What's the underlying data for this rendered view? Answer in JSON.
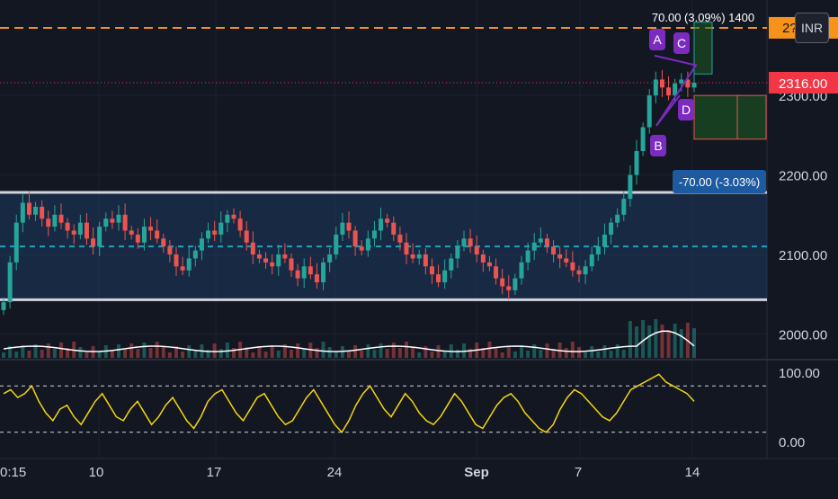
{
  "currency": "INR",
  "price_axis": {
    "labels": [
      "2300.00",
      "2200.00",
      "2100.00",
      "2000.00"
    ],
    "last_price": "2316.00",
    "top_label": "2??5"
  },
  "oscillator_axis": {
    "labels": [
      "100.00",
      "0.00"
    ]
  },
  "time_axis": {
    "labels": [
      "0:15",
      "10",
      "17",
      "24",
      "Sep",
      "7",
      "14"
    ]
  },
  "annotations": {
    "upper_target": "70.00 (3.09%) 1400",
    "lower_target": "-70.00 (-3.03%)",
    "pattern_points": [
      "A",
      "B",
      "C",
      "D"
    ]
  },
  "colors": {
    "background": "#131722",
    "up": "#26a69a",
    "down": "#ef5350",
    "range_box": "#1e3a5f",
    "range_border": "#d1d4dc",
    "mid_line": "#1aa3c4",
    "target_line": "#f7931a",
    "last_price": "#f23645",
    "oscillator": "#f5d60b",
    "volume_ma": "#ffffff",
    "pattern": "#7b2cbf"
  },
  "chart_data": {
    "type": "candlestick",
    "price_axis_ticks": [
      2300,
      2200,
      2100,
      2000
    ],
    "ylim": [
      1970,
      2420
    ],
    "last_price": 2316,
    "target_level": 2385,
    "range_box": {
      "top": 2178,
      "bottom": 2043,
      "mid": 2110
    },
    "upper_target_range": [
      2327,
      2392
    ],
    "lower_target_range": [
      2245,
      2300
    ],
    "close_series": [
      2040,
      2090,
      2140,
      2165,
      2150,
      2160,
      2145,
      2135,
      2150,
      2140,
      2130,
      2125,
      2140,
      2120,
      2110,
      2135,
      2145,
      2140,
      2150,
      2130,
      2125,
      2115,
      2135,
      2130,
      2120,
      2110,
      2100,
      2085,
      2080,
      2095,
      2105,
      2120,
      2130,
      2125,
      2140,
      2150,
      2145,
      2130,
      2115,
      2100,
      2095,
      2090,
      2085,
      2100,
      2095,
      2080,
      2070,
      2085,
      2075,
      2065,
      2090,
      2100,
      2125,
      2140,
      2130,
      2110,
      2105,
      2120,
      2130,
      2145,
      2140,
      2125,
      2115,
      2100,
      2095,
      2100,
      2085,
      2075,
      2065,
      2080,
      2095,
      2110,
      2120,
      2110,
      2100,
      2090,
      2085,
      2070,
      2060,
      2055,
      2070,
      2090,
      2105,
      2115,
      2120,
      2110,
      2100,
      2095,
      2090,
      2080,
      2075,
      2085,
      2100,
      2110,
      2125,
      2140,
      2150,
      2170,
      2200,
      2230,
      2260,
      2300,
      2320,
      2310,
      2300,
      2315,
      2320,
      2310,
      2316
    ],
    "oscillator_ylim": [
      0,
      100
    ],
    "oscillator_levels": [
      80,
      20
    ],
    "oscillator_series": [
      70,
      75,
      65,
      70,
      80,
      60,
      45,
      35,
      50,
      55,
      40,
      30,
      45,
      60,
      70,
      55,
      40,
      35,
      50,
      60,
      45,
      30,
      40,
      55,
      65,
      50,
      35,
      25,
      40,
      60,
      70,
      75,
      60,
      45,
      35,
      50,
      65,
      70,
      55,
      40,
      30,
      35,
      50,
      65,
      75,
      60,
      45,
      30,
      20,
      35,
      55,
      70,
      80,
      65,
      50,
      40,
      55,
      70,
      60,
      45,
      35,
      30,
      40,
      55,
      70,
      60,
      45,
      30,
      25,
      40,
      55,
      65,
      70,
      60,
      45,
      35,
      25,
      20,
      30,
      50,
      65,
      75,
      70,
      60,
      50,
      40,
      35,
      45,
      60,
      75,
      80,
      85,
      90,
      95,
      85,
      80,
      75,
      70,
      60
    ]
  }
}
